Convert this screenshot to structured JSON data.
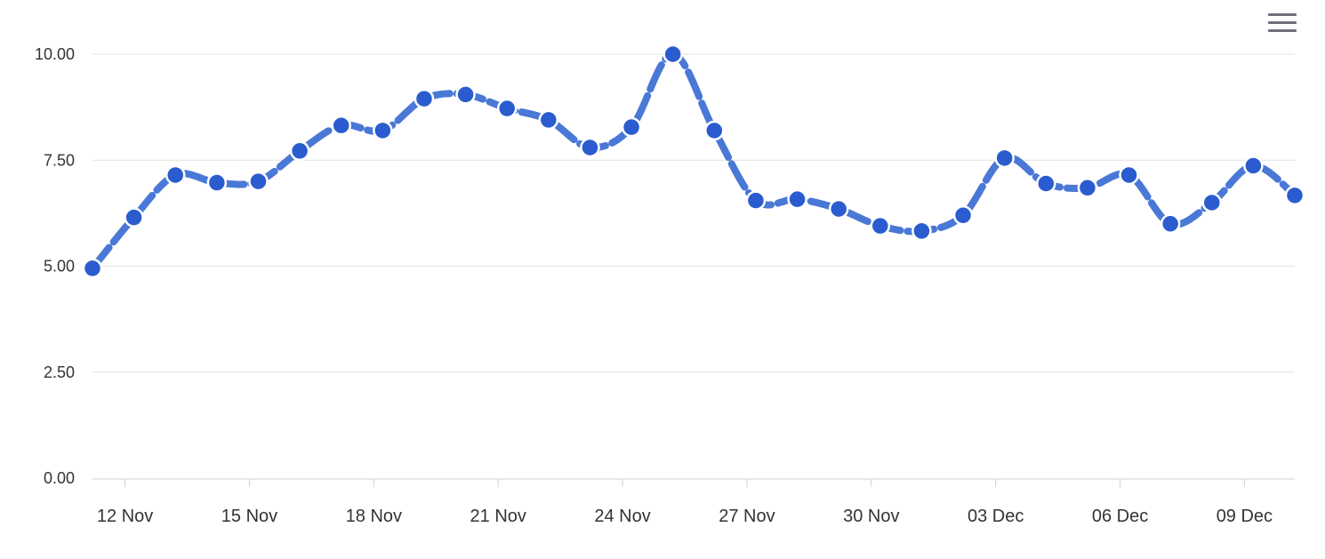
{
  "toolbar": {
    "menu_icon": "hamburger-menu-icon"
  },
  "colors": {
    "series_line": "#4a78d6",
    "series_marker": "#2a5ccf",
    "marker_stroke": "#ffffff",
    "grid": "#e0e0e0",
    "text": "#333333"
  },
  "chart_data": {
    "type": "line",
    "smooth": true,
    "dashed_line": true,
    "markers": true,
    "grid": true,
    "legend": "none",
    "x_start": "11 Nov",
    "x_end": "10 Dec",
    "x": [
      "11 Nov",
      "12 Nov",
      "13 Nov",
      "14 Nov",
      "15 Nov",
      "16 Nov",
      "17 Nov",
      "18 Nov",
      "19 Nov",
      "20 Nov",
      "21 Nov",
      "22 Nov",
      "23 Nov",
      "24 Nov",
      "25 Nov",
      "26 Nov",
      "27 Nov",
      "28 Nov",
      "29 Nov",
      "30 Nov",
      "01 Dec",
      "02 Dec",
      "03 Dec",
      "04 Dec",
      "05 Dec",
      "06 Dec",
      "07 Dec",
      "08 Dec",
      "09 Dec",
      "10 Dec"
    ],
    "series": [
      {
        "values": [
          4.95,
          6.15,
          7.15,
          6.97,
          7.0,
          7.72,
          8.32,
          8.2,
          8.95,
          9.05,
          8.72,
          8.45,
          7.8,
          8.28,
          10.0,
          8.2,
          6.55,
          6.58,
          6.35,
          5.95,
          5.83,
          6.2,
          7.55,
          6.95,
          6.85,
          7.15,
          6.0,
          6.5,
          7.37,
          6.67
        ]
      }
    ],
    "ylim": [
      0,
      10
    ],
    "y_ticks": [
      "0.00",
      "2.50",
      "5.00",
      "7.50",
      "10.00"
    ],
    "y_tick_values": [
      0,
      2.5,
      5,
      7.5,
      10
    ],
    "x_tick_labels": [
      "12 Nov",
      "15 Nov",
      "18 Nov",
      "21 Nov",
      "24 Nov",
      "27 Nov",
      "30 Nov",
      "03 Dec",
      "06 Dec",
      "09 Dec"
    ],
    "xlabel": "",
    "ylabel": "",
    "title": ""
  }
}
